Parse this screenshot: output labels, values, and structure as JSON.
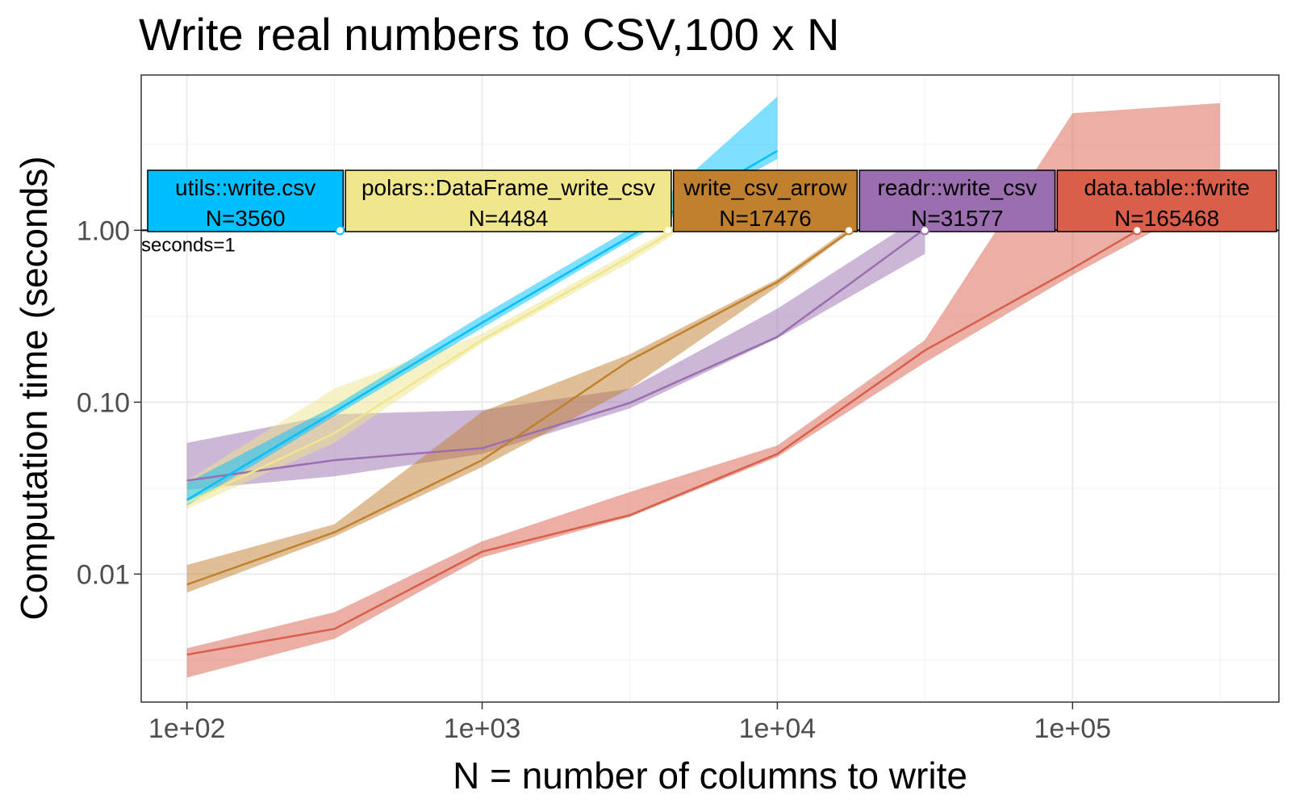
{
  "chart_data": {
    "type": "line",
    "title": "Write real numbers to CSV,100 x N",
    "xlabel": "N = number of columns to write",
    "ylabel": "Computation time (seconds)",
    "x_scale": "log10",
    "y_scale": "log10",
    "xlim": [
      70,
      500000
    ],
    "ylim": [
      0.0018,
      8
    ],
    "x_ticks": [
      {
        "value": 100,
        "label": "1e+02"
      },
      {
        "value": 1000,
        "label": "1e+03"
      },
      {
        "value": 10000,
        "label": "1e+04"
      },
      {
        "value": 100000,
        "label": "1e+05"
      }
    ],
    "y_ticks": [
      {
        "value": 0.01,
        "label": "0.01"
      },
      {
        "value": 0.1,
        "label": "0.10"
      },
      {
        "value": 1,
        "label": "1.00"
      }
    ],
    "grid": true,
    "reference_line": {
      "y": 1,
      "label": "seconds=1"
    },
    "series": [
      {
        "name": "data.table::fwrite",
        "color": "#D95F4B",
        "x": [
          100,
          316,
          1000,
          3162,
          10000,
          31623,
          100000,
          316228
        ],
        "y": [
          0.0034,
          0.0048,
          0.0135,
          0.022,
          0.05,
          0.2,
          0.6,
          1.9
        ],
        "ymin": [
          0.0025,
          0.0042,
          0.0125,
          0.0215,
          0.048,
          0.17,
          0.55,
          1.6
        ],
        "ymax": [
          0.0037,
          0.006,
          0.0155,
          0.03,
          0.056,
          0.23,
          4.8,
          5.5
        ],
        "label": {
          "name": "data.table::fwrite",
          "n_text": "N=165468",
          "n": 165468
        }
      },
      {
        "name": "readr::write_csv",
        "color": "#9B6FAF",
        "x": [
          100,
          316,
          1000,
          3162,
          10000,
          31623
        ],
        "y": [
          0.035,
          0.046,
          0.054,
          0.099,
          0.24,
          1.02
        ],
        "ymin": [
          0.031,
          0.037,
          0.05,
          0.092,
          0.235,
          0.73
        ],
        "ymax": [
          0.058,
          0.085,
          0.09,
          0.12,
          0.35,
          1.25
        ],
        "label": {
          "name": "readr::write_csv",
          "n_text": "N=31577",
          "n": 31577
        }
      },
      {
        "name": "write_csv_arrow",
        "color": "#C1802E",
        "x": [
          100,
          316,
          1000,
          3162,
          10000,
          17783
        ],
        "y": [
          0.0087,
          0.0175,
          0.046,
          0.175,
          0.5,
          1.0
        ],
        "ymin": [
          0.0078,
          0.0165,
          0.042,
          0.12,
          0.47,
          0.98
        ],
        "ymax": [
          0.0113,
          0.0195,
          0.088,
          0.19,
          0.52,
          1.05
        ],
        "label": {
          "name": "write_csv_arrow",
          "n_text": "N=17476",
          "n": 17476
        }
      },
      {
        "name": "polars::DataFrame_write_csv",
        "color": "#F0E68C",
        "x": [
          100,
          316,
          1000,
          3162,
          4484
        ],
        "y": [
          0.026,
          0.066,
          0.23,
          0.7,
          1.0
        ],
        "ymin": [
          0.024,
          0.058,
          0.22,
          0.65,
          0.95
        ],
        "ymax": [
          0.035,
          0.12,
          0.25,
          0.75,
          1.05
        ],
        "label": {
          "name": "polars::DataFrame_write_csv",
          "n_text": "N=4484",
          "n": 4484
        }
      },
      {
        "name": "utils::write.csv",
        "color": "#00BFFF",
        "x": [
          100,
          316,
          1000,
          3162,
          10000
        ],
        "y": [
          0.027,
          0.088,
          0.29,
          0.92,
          2.9
        ],
        "ymin": [
          0.025,
          0.083,
          0.27,
          0.87,
          2.6
        ],
        "ymax": [
          0.034,
          0.095,
          0.32,
          1.02,
          6.0
        ],
        "label": {
          "name": "utils::write.csv",
          "n_text": "N=3560",
          "n": 3560
        }
      }
    ]
  }
}
